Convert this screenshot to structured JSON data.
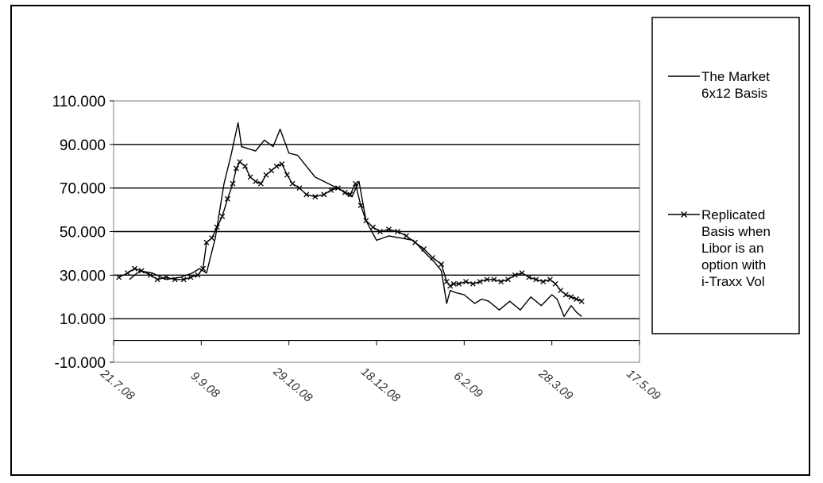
{
  "chart_data": {
    "type": "line",
    "title": "",
    "xlabel": "",
    "ylabel": "",
    "ylim": [
      -10,
      110
    ],
    "y_ticks": [
      110,
      90,
      70,
      50,
      30,
      10,
      -10
    ],
    "y_tick_labels": [
      "110.000",
      "90.000",
      "70.000",
      "50.000",
      "30.000",
      "10.000",
      "-10.000"
    ],
    "x_tick_labels": [
      "21.7.08",
      "9.9.08",
      "29.10.08",
      "18.12.08",
      "6.2.09",
      "28.3.09",
      "17.5.09"
    ],
    "x_tick_dates": [
      "2008-07-21",
      "2008-09-09",
      "2008-10-29",
      "2008-12-18",
      "2009-02-06",
      "2009-03-28",
      "2009-05-17"
    ],
    "xlim": [
      "2008-07-21",
      "2009-05-17"
    ],
    "grid": "horizontal",
    "legend_position": "right",
    "series": [
      {
        "name": "The Market 6x12 Basis",
        "marker": "none",
        "color": "#000000",
        "x": [
          "2008-07-30",
          "2008-08-05",
          "2008-08-12",
          "2008-08-20",
          "2008-08-28",
          "2008-09-04",
          "2008-09-08",
          "2008-09-12",
          "2008-09-17",
          "2008-09-22",
          "2008-09-26",
          "2008-09-30",
          "2008-10-02",
          "2008-10-06",
          "2008-10-10",
          "2008-10-15",
          "2008-10-20",
          "2008-10-24",
          "2008-10-29",
          "2008-11-03",
          "2008-11-08",
          "2008-11-13",
          "2008-11-18",
          "2008-11-23",
          "2008-11-28",
          "2008-12-01",
          "2008-12-04",
          "2008-12-08",
          "2008-12-12",
          "2008-12-18",
          "2008-12-25",
          "2009-01-01",
          "2009-01-08",
          "2009-01-15",
          "2009-01-20",
          "2009-01-24",
          "2009-01-27",
          "2009-01-29",
          "2009-02-01",
          "2009-02-06",
          "2009-02-12",
          "2009-02-16",
          "2009-02-20",
          "2009-02-26",
          "2009-03-04",
          "2009-03-10",
          "2009-03-16",
          "2009-03-22",
          "2009-03-28",
          "2009-03-31",
          "2009-04-04",
          "2009-04-08",
          "2009-04-11",
          "2009-04-14"
        ],
        "y": [
          28,
          32,
          31,
          28,
          29,
          31,
          33,
          31,
          47,
          72,
          85,
          100,
          89,
          88,
          87,
          92,
          89,
          97,
          86,
          85,
          80,
          75,
          73,
          71,
          69,
          67,
          66,
          73,
          55,
          46,
          48,
          47,
          46,
          40,
          36,
          32,
          17,
          23,
          22,
          21,
          17,
          19,
          18,
          14,
          18,
          14,
          20,
          16,
          21,
          19,
          11,
          16,
          13,
          11
        ]
      },
      {
        "name": "Replicated Basis when Libor is an option with i-Traxx Vol",
        "marker": "x",
        "color": "#000000",
        "x": [
          "2008-07-24",
          "2008-07-29",
          "2008-08-02",
          "2008-08-06",
          "2008-08-11",
          "2008-08-15",
          "2008-08-20",
          "2008-08-25",
          "2008-08-30",
          "2008-09-03",
          "2008-09-07",
          "2008-09-10",
          "2008-09-12",
          "2008-09-15",
          "2008-09-18",
          "2008-09-21",
          "2008-09-24",
          "2008-09-27",
          "2008-09-29",
          "2008-10-01",
          "2008-10-04",
          "2008-10-07",
          "2008-10-10",
          "2008-10-13",
          "2008-10-16",
          "2008-10-19",
          "2008-10-22",
          "2008-10-25",
          "2008-10-28",
          "2008-10-31",
          "2008-11-04",
          "2008-11-08",
          "2008-11-13",
          "2008-11-18",
          "2008-11-22",
          "2008-11-26",
          "2008-11-30",
          "2008-12-03",
          "2008-12-06",
          "2008-12-09",
          "2008-12-12",
          "2008-12-16",
          "2008-12-20",
          "2008-12-25",
          "2008-12-30",
          "2009-01-04",
          "2009-01-09",
          "2009-01-14",
          "2009-01-19",
          "2009-01-24",
          "2009-01-27",
          "2009-01-29",
          "2009-01-31",
          "2009-02-03",
          "2009-02-07",
          "2009-02-11",
          "2009-02-15",
          "2009-02-19",
          "2009-02-23",
          "2009-02-27",
          "2009-03-03",
          "2009-03-07",
          "2009-03-11",
          "2009-03-15",
          "2009-03-19",
          "2009-03-23",
          "2009-03-27",
          "2009-03-30",
          "2009-04-02",
          "2009-04-05",
          "2009-04-08",
          "2009-04-11",
          "2009-04-14"
        ],
        "y": [
          29,
          31,
          33,
          32,
          30,
          28,
          29,
          28,
          28,
          29,
          30,
          33,
          45,
          47,
          52,
          57,
          65,
          72,
          79,
          82,
          80,
          75,
          73,
          72,
          76,
          78,
          80,
          81,
          76,
          72,
          70,
          67,
          66,
          67,
          69,
          70,
          68,
          67,
          72,
          62,
          55,
          52,
          50,
          51,
          50,
          48,
          45,
          42,
          38,
          35,
          27,
          25,
          26,
          26,
          27,
          26,
          27,
          28,
          28,
          27,
          28,
          30,
          31,
          29,
          28,
          27,
          28,
          26,
          23,
          21,
          20,
          19,
          18
        ]
      }
    ]
  }
}
